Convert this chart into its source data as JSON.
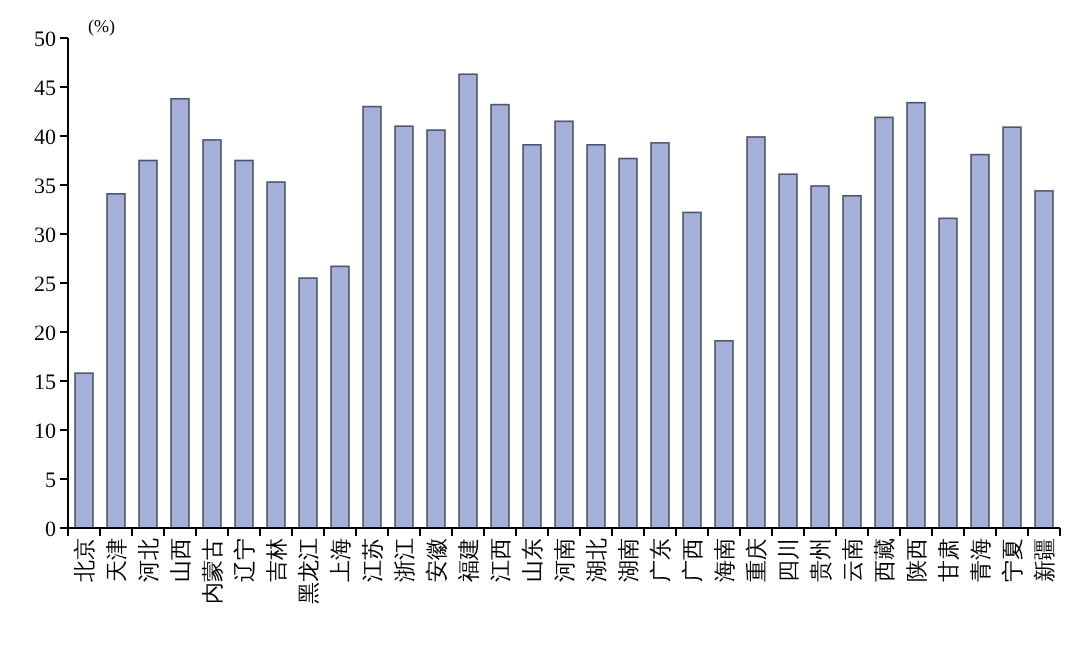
{
  "chart_data": {
    "type": "bar",
    "ylabel": "(%)",
    "categories": [
      "北京",
      "天津",
      "河北",
      "山西",
      "内蒙古",
      "辽宁",
      "吉林",
      "黑龙江",
      "上海",
      "江苏",
      "浙江",
      "安徽",
      "福建",
      "江西",
      "山东",
      "河南",
      "湖北",
      "湖南",
      "广东",
      "广西",
      "海南",
      "重庆",
      "四川",
      "贵州",
      "云南",
      "西藏",
      "陕西",
      "甘肃",
      "青海",
      "宁夏",
      "新疆"
    ],
    "values": [
      15.8,
      34.1,
      37.5,
      43.8,
      39.6,
      37.5,
      35.3,
      25.5,
      26.7,
      43.0,
      41.0,
      40.6,
      46.3,
      43.2,
      39.1,
      41.5,
      39.1,
      37.7,
      39.3,
      32.2,
      19.1,
      39.9,
      36.1,
      34.9,
      33.9,
      41.9,
      43.4,
      31.6,
      38.1,
      40.9,
      34.4
    ],
    "color": "#a4b0d8",
    "ylim": [
      0,
      50
    ],
    "yticks": [
      0,
      5,
      10,
      15,
      20,
      25,
      30,
      35,
      40,
      45,
      50
    ],
    "grid": false
  }
}
